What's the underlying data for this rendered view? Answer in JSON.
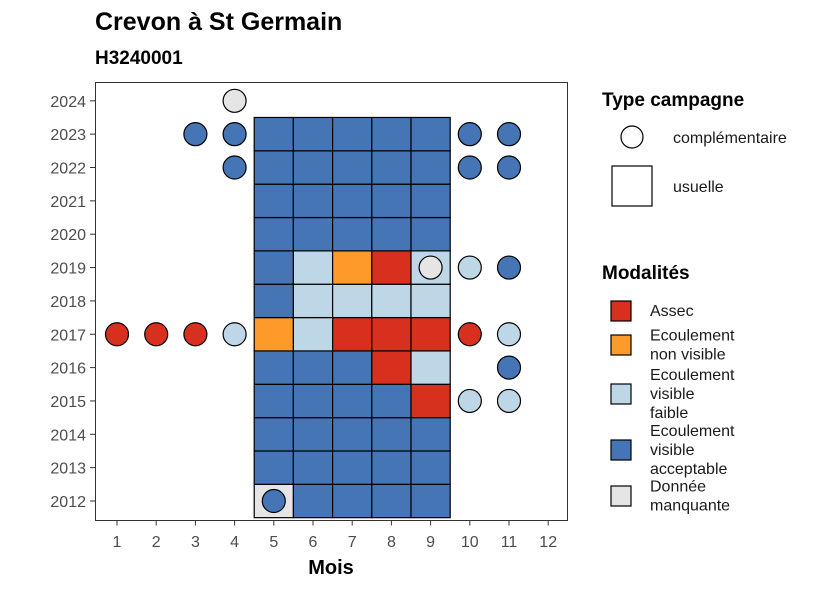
{
  "chart_data": {
    "type": "heatmap",
    "title": "Crevon à St Germain",
    "subtitle": "H3240001",
    "xlabel": "Mois",
    "ylabel": "",
    "x_ticks": [
      1,
      2,
      3,
      4,
      5,
      6,
      7,
      8,
      9,
      10,
      11,
      12
    ],
    "y_ticks": [
      2012,
      2013,
      2014,
      2015,
      2016,
      2017,
      2018,
      2019,
      2020,
      2021,
      2022,
      2023,
      2024
    ],
    "xlim": [
      0.5,
      12.5
    ],
    "ylim": [
      2011.5,
      2024.5
    ],
    "colors": {
      "assec": "#d7301f",
      "ecoulement_non_visible": "#fd9a2a",
      "ecoulement_visible_faible": "#bdd7e7",
      "ecoulement_visible_acceptable": "#4575b4",
      "donnee_manquante": "#e5e5e5"
    },
    "legend_type": {
      "title": "Type campagne",
      "entries": [
        {
          "key": "complementaire",
          "label": "complémentaire",
          "shape": "circle"
        },
        {
          "key": "usuelle",
          "label": "usuelle",
          "shape": "square"
        }
      ]
    },
    "legend_modalites": {
      "title": "Modalités",
      "entries": [
        {
          "key": "assec",
          "lines": [
            "Assec"
          ]
        },
        {
          "key": "ecoulement_non_visible",
          "lines": [
            "Ecoulement",
            "non visible"
          ]
        },
        {
          "key": "ecoulement_visible_faible",
          "lines": [
            "Ecoulement",
            "visible",
            "faible"
          ]
        },
        {
          "key": "ecoulement_visible_acceptable",
          "lines": [
            "Ecoulement",
            "visible",
            "acceptable"
          ]
        },
        {
          "key": "donnee_manquante",
          "lines": [
            "Donnée",
            "manquante"
          ]
        }
      ]
    },
    "usuelle": [
      {
        "year": 2012,
        "values": {
          "5": "donnee_manquante",
          "6": "ecoulement_visible_acceptable",
          "7": "ecoulement_visible_acceptable",
          "8": "ecoulement_visible_acceptable",
          "9": "ecoulement_visible_acceptable"
        }
      },
      {
        "year": 2013,
        "values": {
          "5": "ecoulement_visible_acceptable",
          "6": "ecoulement_visible_acceptable",
          "7": "ecoulement_visible_acceptable",
          "8": "ecoulement_visible_acceptable",
          "9": "ecoulement_visible_acceptable"
        }
      },
      {
        "year": 2014,
        "values": {
          "5": "ecoulement_visible_acceptable",
          "6": "ecoulement_visible_acceptable",
          "7": "ecoulement_visible_acceptable",
          "8": "ecoulement_visible_acceptable",
          "9": "ecoulement_visible_acceptable"
        }
      },
      {
        "year": 2015,
        "values": {
          "5": "ecoulement_visible_acceptable",
          "6": "ecoulement_visible_acceptable",
          "7": "ecoulement_visible_acceptable",
          "8": "ecoulement_visible_acceptable",
          "9": "assec"
        }
      },
      {
        "year": 2016,
        "values": {
          "5": "ecoulement_visible_acceptable",
          "6": "ecoulement_visible_acceptable",
          "7": "ecoulement_visible_acceptable",
          "8": "assec",
          "9": "ecoulement_visible_faible"
        }
      },
      {
        "year": 2017,
        "values": {
          "5": "ecoulement_non_visible",
          "6": "ecoulement_visible_faible",
          "7": "assec",
          "8": "assec",
          "9": "assec"
        }
      },
      {
        "year": 2018,
        "values": {
          "5": "ecoulement_visible_acceptable",
          "6": "ecoulement_visible_faible",
          "7": "ecoulement_visible_faible",
          "8": "ecoulement_visible_faible",
          "9": "ecoulement_visible_faible"
        }
      },
      {
        "year": 2019,
        "values": {
          "5": "ecoulement_visible_acceptable",
          "6": "ecoulement_visible_faible",
          "7": "ecoulement_non_visible",
          "8": "assec",
          "9": "ecoulement_visible_faible"
        }
      },
      {
        "year": 2020,
        "values": {
          "5": "ecoulement_visible_acceptable",
          "6": "ecoulement_visible_acceptable",
          "7": "ecoulement_visible_acceptable",
          "8": "ecoulement_visible_acceptable",
          "9": "ecoulement_visible_acceptable"
        }
      },
      {
        "year": 2021,
        "values": {
          "5": "ecoulement_visible_acceptable",
          "6": "ecoulement_visible_acceptable",
          "7": "ecoulement_visible_acceptable",
          "8": "ecoulement_visible_acceptable",
          "9": "ecoulement_visible_acceptable"
        }
      },
      {
        "year": 2022,
        "values": {
          "5": "ecoulement_visible_acceptable",
          "6": "ecoulement_visible_acceptable",
          "7": "ecoulement_visible_acceptable",
          "8": "ecoulement_visible_acceptable",
          "9": "ecoulement_visible_acceptable"
        }
      },
      {
        "year": 2023,
        "values": {
          "5": "ecoulement_visible_acceptable",
          "6": "ecoulement_visible_acceptable",
          "7": "ecoulement_visible_acceptable",
          "8": "ecoulement_visible_acceptable",
          "9": "ecoulement_visible_acceptable"
        }
      }
    ],
    "complementaire": [
      {
        "year": 2012,
        "month": 5,
        "value": "ecoulement_visible_acceptable"
      },
      {
        "year": 2015,
        "month": 10,
        "value": "ecoulement_visible_faible"
      },
      {
        "year": 2015,
        "month": 11,
        "value": "ecoulement_visible_faible"
      },
      {
        "year": 2016,
        "month": 11,
        "value": "ecoulement_visible_acceptable"
      },
      {
        "year": 2017,
        "month": 1,
        "value": "assec"
      },
      {
        "year": 2017,
        "month": 2,
        "value": "assec"
      },
      {
        "year": 2017,
        "month": 3,
        "value": "assec"
      },
      {
        "year": 2017,
        "month": 4,
        "value": "ecoulement_visible_faible"
      },
      {
        "year": 2017,
        "month": 10,
        "value": "assec"
      },
      {
        "year": 2017,
        "month": 11,
        "value": "ecoulement_visible_faible"
      },
      {
        "year": 2019,
        "month": 9,
        "value": "donnee_manquante"
      },
      {
        "year": 2019,
        "month": 10,
        "value": "ecoulement_visible_faible"
      },
      {
        "year": 2019,
        "month": 11,
        "value": "ecoulement_visible_acceptable"
      },
      {
        "year": 2022,
        "month": 4,
        "value": "ecoulement_visible_acceptable"
      },
      {
        "year": 2022,
        "month": 10,
        "value": "ecoulement_visible_acceptable"
      },
      {
        "year": 2022,
        "month": 11,
        "value": "ecoulement_visible_acceptable"
      },
      {
        "year": 2023,
        "month": 3,
        "value": "ecoulement_visible_acceptable"
      },
      {
        "year": 2023,
        "month": 4,
        "value": "ecoulement_visible_acceptable"
      },
      {
        "year": 2023,
        "month": 10,
        "value": "ecoulement_visible_acceptable"
      },
      {
        "year": 2023,
        "month": 11,
        "value": "ecoulement_visible_acceptable"
      },
      {
        "year": 2024,
        "month": 4,
        "value": "donnee_manquante"
      }
    ]
  }
}
